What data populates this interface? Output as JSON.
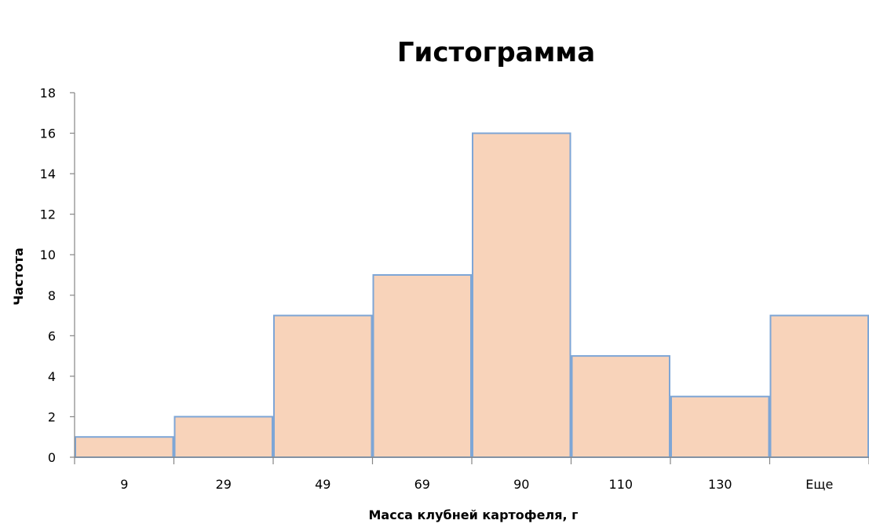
{
  "chart_data": {
    "type": "bar",
    "title": "Гистограмма",
    "xlabel": "Масса клубней картофеля, г",
    "ylabel": "Частота",
    "categories": [
      "9",
      "29",
      "49",
      "69",
      "90",
      "110",
      "130",
      "Еще"
    ],
    "values": [
      1,
      2,
      7,
      9,
      16,
      5,
      3,
      7
    ],
    "ylim": [
      0,
      18
    ],
    "yticks": [
      0,
      2,
      4,
      6,
      8,
      10,
      12,
      14,
      16,
      18
    ],
    "grid": false,
    "legend": "none",
    "colors": {
      "bar_fill": "#F8D3BA",
      "bar_edge": "#7EA6D6",
      "axis": "#868686"
    }
  }
}
